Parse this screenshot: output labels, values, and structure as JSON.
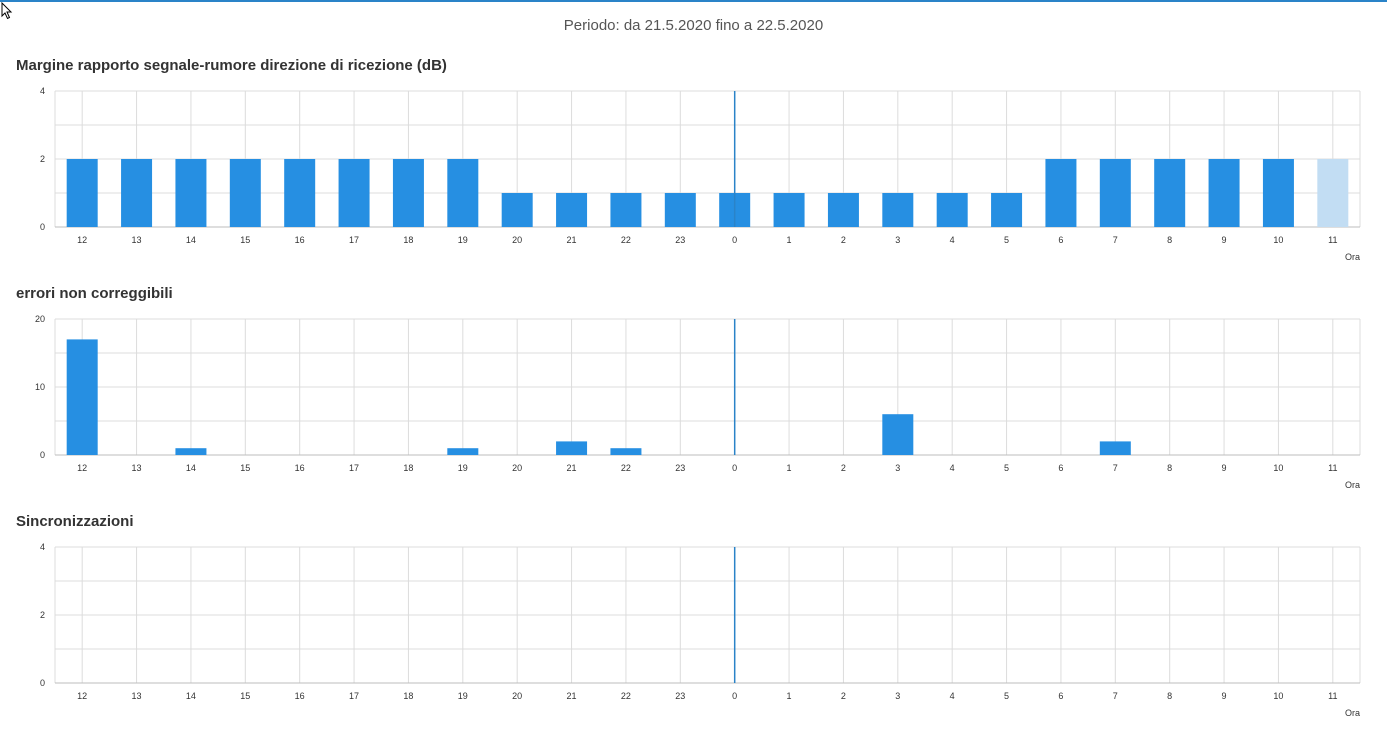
{
  "period": "Periodo: da 21.5.2020 fino a 22.5.2020",
  "colors": {
    "bar": "#268fe2",
    "bar_partial": "#c2ddf3",
    "grid": "#dcdcdc",
    "current_line": "#2a83c8"
  },
  "chart_data": [
    {
      "type": "bar",
      "title": "Margine rapporto segnale-rumore direzione di ricezione (dB)",
      "xlabel": "Ora",
      "ylabel": "",
      "categories": [
        "12",
        "13",
        "14",
        "15",
        "16",
        "17",
        "18",
        "19",
        "20",
        "21",
        "22",
        "23",
        "0",
        "1",
        "2",
        "3",
        "4",
        "5",
        "6",
        "7",
        "8",
        "9",
        "10",
        "11"
      ],
      "values": [
        2,
        2,
        2,
        2,
        2,
        2,
        2,
        2,
        1,
        1,
        1,
        1,
        1,
        1,
        1,
        1,
        1,
        1,
        2,
        2,
        2,
        2,
        2,
        2
      ],
      "partial_last": true,
      "ylim": [
        0,
        4
      ],
      "yticks": [
        0,
        2,
        4
      ],
      "grid": true,
      "current_hour": "0"
    },
    {
      "type": "bar",
      "title": "errori non correggibili",
      "xlabel": "Ora",
      "ylabel": "",
      "categories": [
        "12",
        "13",
        "14",
        "15",
        "16",
        "17",
        "18",
        "19",
        "20",
        "21",
        "22",
        "23",
        "0",
        "1",
        "2",
        "3",
        "4",
        "5",
        "6",
        "7",
        "8",
        "9",
        "10",
        "11"
      ],
      "values": [
        17,
        0,
        1,
        0,
        0,
        0,
        0,
        1,
        0,
        2,
        1,
        0,
        0,
        0,
        0,
        6,
        0,
        0,
        0,
        2,
        0,
        0,
        0,
        0
      ],
      "partial_last": false,
      "ylim": [
        0,
        20
      ],
      "yticks": [
        0,
        10,
        20
      ],
      "grid": true,
      "current_hour": "0"
    },
    {
      "type": "bar",
      "title": "Sincronizzazioni",
      "xlabel": "Ora",
      "ylabel": "",
      "categories": [
        "12",
        "13",
        "14",
        "15",
        "16",
        "17",
        "18",
        "19",
        "20",
        "21",
        "22",
        "23",
        "0",
        "1",
        "2",
        "3",
        "4",
        "5",
        "6",
        "7",
        "8",
        "9",
        "10",
        "11"
      ],
      "values": [
        0,
        0,
        0,
        0,
        0,
        0,
        0,
        0,
        0,
        0,
        0,
        0,
        0,
        0,
        0,
        0,
        0,
        0,
        0,
        0,
        0,
        0,
        0,
        0
      ],
      "partial_last": false,
      "ylim": [
        0,
        4
      ],
      "yticks": [
        0,
        2,
        4
      ],
      "grid": true,
      "current_hour": "0"
    }
  ]
}
